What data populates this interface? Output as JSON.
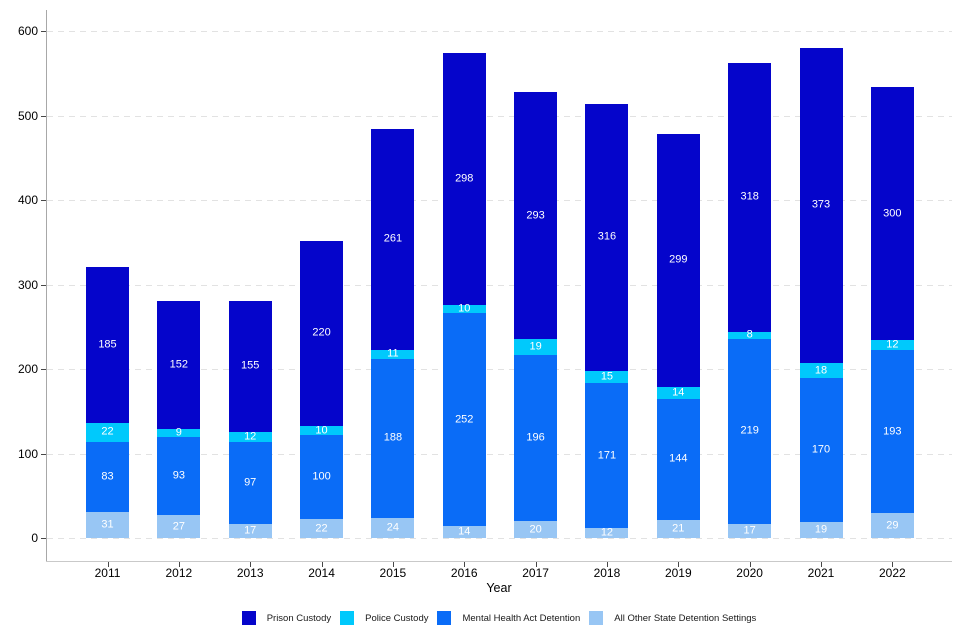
{
  "chart_data": {
    "type": "bar",
    "stacked": true,
    "title": "",
    "xlabel": "Year",
    "ylabel": "",
    "categories": [
      "2011",
      "2012",
      "2013",
      "2014",
      "2015",
      "2016",
      "2017",
      "2018",
      "2019",
      "2020",
      "2021",
      "2022"
    ],
    "series": [
      {
        "name": "All Other State Detention Settings",
        "color": "#98c6f4",
        "values": [
          31,
          27,
          17,
          22,
          24,
          14,
          20,
          12,
          21,
          17,
          19,
          29
        ]
      },
      {
        "name": "Mental Health Act Detention",
        "color": "#0a6cf7",
        "values": [
          83,
          93,
          97,
          100,
          188,
          252,
          196,
          171,
          144,
          219,
          170,
          193
        ]
      },
      {
        "name": "Police Custody",
        "color": "#00c9fc",
        "values": [
          22,
          9,
          12,
          10,
          11,
          10,
          19,
          15,
          14,
          8,
          18,
          12
        ]
      },
      {
        "name": "Prison Custody",
        "color": "#0505cb",
        "values": [
          185,
          152,
          155,
          220,
          261,
          298,
          293,
          316,
          299,
          318,
          373,
          300
        ]
      }
    ],
    "legend_order": [
      "Prison Custody",
      "Police Custody",
      "Mental Health Act Detention",
      "All Other State Detention Settings"
    ],
    "legend_position": "bottom",
    "y_ticks": [
      0,
      100,
      200,
      300,
      400,
      500,
      600
    ],
    "ylim": [
      0,
      600
    ],
    "grid": "dashed horizontal gridlines at each y tick",
    "segment_label_color": "#ffffff"
  }
}
